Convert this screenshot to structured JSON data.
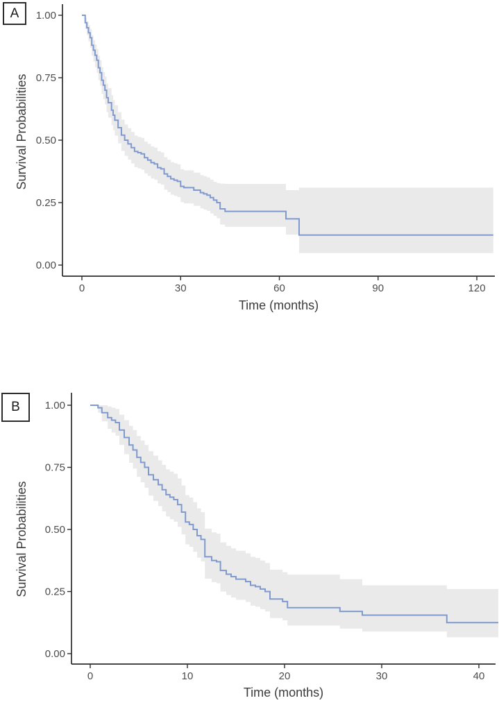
{
  "figure": {
    "style": {
      "line_color": "#7f99cf",
      "band_color": "#eaeaea",
      "axis_color": "#2d2d2d",
      "tick_text_color": "#4b4b4b",
      "title_text_color": "#3a3a3a",
      "background": "#ffffff"
    }
  },
  "chart_data": [
    {
      "type": "line",
      "subtype": "kaplan-meier-step",
      "panel_label": "A",
      "title": "",
      "xlabel": "Time (months)",
      "ylabel": "Survival Probabilities",
      "xlim": [
        0,
        125
      ],
      "ylim": [
        0,
        1
      ],
      "x_ticks": [
        0,
        30,
        60,
        90,
        120
      ],
      "x_tick_labels": [
        "0",
        "30",
        "60",
        "90",
        "120"
      ],
      "y_ticks": [
        0,
        0.25,
        0.5,
        0.75,
        1
      ],
      "y_tick_labels": [
        "0.00",
        "0.25",
        "0.50",
        "0.75",
        "1.00"
      ],
      "grid": false,
      "legend": "none",
      "series": [
        {
          "name": "survival-probability",
          "time": [
            0,
            1,
            1.5,
            2,
            2.5,
            3,
            3.5,
            4,
            4.5,
            5,
            5.5,
            6,
            6.5,
            7,
            7.5,
            8,
            9,
            9.5,
            10,
            11,
            12,
            13,
            14,
            15,
            16,
            17,
            18,
            19,
            20,
            21,
            22,
            23,
            24,
            25,
            26,
            27,
            28,
            29,
            30,
            31,
            34,
            36,
            37,
            38,
            39,
            40,
            41,
            42,
            43.5,
            62,
            66,
            125
          ],
          "survival": [
            1.0,
            0.97,
            0.95,
            0.93,
            0.91,
            0.88,
            0.86,
            0.84,
            0.82,
            0.79,
            0.77,
            0.74,
            0.72,
            0.7,
            0.67,
            0.65,
            0.62,
            0.6,
            0.58,
            0.55,
            0.52,
            0.5,
            0.485,
            0.47,
            0.455,
            0.45,
            0.445,
            0.43,
            0.42,
            0.41,
            0.405,
            0.39,
            0.385,
            0.365,
            0.355,
            0.345,
            0.34,
            0.335,
            0.315,
            0.31,
            0.3,
            0.29,
            0.285,
            0.28,
            0.27,
            0.26,
            0.25,
            0.225,
            0.215,
            0.185,
            0.12,
            0.12
          ],
          "ci_lower": [
            1.0,
            0.945,
            0.92,
            0.895,
            0.87,
            0.838,
            0.815,
            0.792,
            0.77,
            0.74,
            0.718,
            0.686,
            0.664,
            0.643,
            0.612,
            0.59,
            0.56,
            0.54,
            0.518,
            0.487,
            0.457,
            0.437,
            0.422,
            0.407,
            0.392,
            0.387,
            0.382,
            0.367,
            0.357,
            0.347,
            0.342,
            0.327,
            0.322,
            0.302,
            0.292,
            0.282,
            0.277,
            0.272,
            0.252,
            0.247,
            0.237,
            0.227,
            0.222,
            0.217,
            0.207,
            0.197,
            0.187,
            0.162,
            0.153,
            0.122,
            0.048,
            0.048
          ],
          "ci_upper": [
            1.0,
            0.99,
            0.975,
            0.96,
            0.945,
            0.92,
            0.9,
            0.883,
            0.865,
            0.838,
            0.82,
            0.792,
            0.773,
            0.755,
            0.726,
            0.708,
            0.68,
            0.66,
            0.64,
            0.612,
            0.582,
            0.563,
            0.548,
            0.533,
            0.518,
            0.513,
            0.509,
            0.494,
            0.485,
            0.475,
            0.47,
            0.456,
            0.451,
            0.432,
            0.422,
            0.412,
            0.408,
            0.403,
            0.384,
            0.379,
            0.37,
            0.36,
            0.356,
            0.351,
            0.342,
            0.333,
            0.328,
            0.326,
            0.325,
            0.3,
            0.31,
            0.31
          ]
        }
      ]
    },
    {
      "type": "line",
      "subtype": "kaplan-meier-step",
      "panel_label": "B",
      "title": "",
      "xlabel": "Time (months)",
      "ylabel": "Survival Probabilities",
      "xlim": [
        0,
        42
      ],
      "ylim": [
        0,
        1
      ],
      "x_ticks": [
        0,
        10,
        20,
        30,
        40
      ],
      "x_tick_labels": [
        "0",
        "10",
        "20",
        "30",
        "40"
      ],
      "y_ticks": [
        0,
        0.25,
        0.5,
        0.75,
        1
      ],
      "y_tick_labels": [
        "0.00",
        "0.25",
        "0.50",
        "0.75",
        "1.00"
      ],
      "grid": false,
      "legend": "none",
      "series": [
        {
          "name": "survival-probability",
          "time": [
            0,
            0.8,
            1.2,
            1.8,
            2.2,
            2.6,
            3,
            3.5,
            4,
            4.4,
            4.8,
            5.2,
            5.6,
            6,
            6.5,
            7,
            7.4,
            7.8,
            8.2,
            8.6,
            9,
            9.4,
            9.8,
            10.2,
            10.6,
            11,
            11.4,
            11.8,
            12.5,
            13,
            13.4,
            14,
            14.5,
            15,
            16,
            16.5,
            17,
            17.5,
            18,
            18.5,
            19.8,
            20.3,
            25.7,
            28,
            36.7,
            42
          ],
          "survival": [
            1.0,
            0.99,
            0.97,
            0.95,
            0.94,
            0.93,
            0.9,
            0.87,
            0.84,
            0.82,
            0.79,
            0.77,
            0.75,
            0.72,
            0.7,
            0.68,
            0.66,
            0.64,
            0.63,
            0.62,
            0.6,
            0.57,
            0.53,
            0.52,
            0.5,
            0.475,
            0.46,
            0.39,
            0.375,
            0.37,
            0.335,
            0.32,
            0.31,
            0.3,
            0.29,
            0.275,
            0.27,
            0.26,
            0.25,
            0.22,
            0.21,
            0.185,
            0.17,
            0.155,
            0.125,
            0.125
          ],
          "ci_lower": [
            1.0,
            0.97,
            0.935,
            0.905,
            0.89,
            0.877,
            0.84,
            0.803,
            0.768,
            0.745,
            0.712,
            0.69,
            0.668,
            0.636,
            0.615,
            0.594,
            0.573,
            0.552,
            0.541,
            0.531,
            0.51,
            0.48,
            0.44,
            0.43,
            0.41,
            0.386,
            0.371,
            0.302,
            0.288,
            0.283,
            0.25,
            0.236,
            0.226,
            0.217,
            0.208,
            0.193,
            0.189,
            0.179,
            0.17,
            0.143,
            0.134,
            0.113,
            0.101,
            0.089,
            0.066,
            0.066
          ],
          "ci_upper": [
            1.0,
            1.0,
            1.0,
            0.995,
            0.99,
            0.985,
            0.962,
            0.94,
            0.917,
            0.9,
            0.876,
            0.858,
            0.84,
            0.815,
            0.797,
            0.778,
            0.76,
            0.742,
            0.733,
            0.724,
            0.705,
            0.677,
            0.638,
            0.628,
            0.61,
            0.585,
            0.57,
            0.503,
            0.488,
            0.483,
            0.448,
            0.434,
            0.424,
            0.414,
            0.404,
            0.39,
            0.385,
            0.375,
            0.365,
            0.338,
            0.328,
            0.318,
            0.3,
            0.275,
            0.26,
            0.26
          ]
        }
      ]
    }
  ]
}
